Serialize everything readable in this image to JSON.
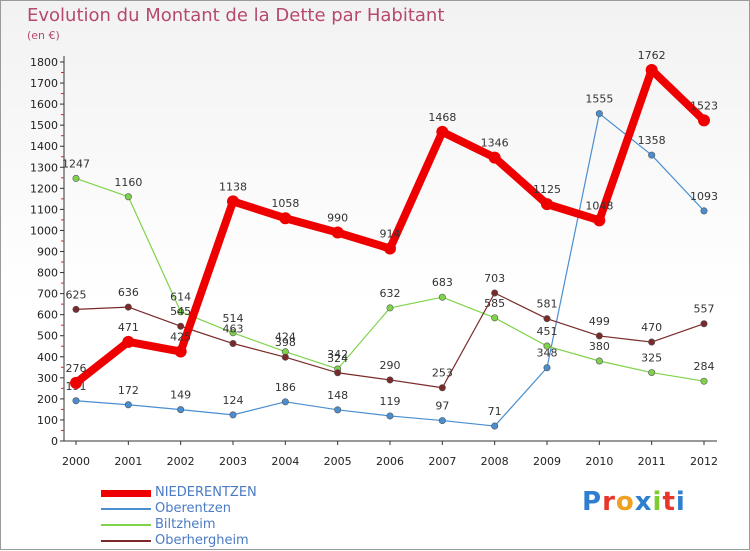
{
  "header": {
    "title": "Evolution du Montant de la Dette par Habitant",
    "subtitle": "(en €)"
  },
  "brand": {
    "logo_text": "Proxiti"
  },
  "chart_data": {
    "type": "line",
    "title": "Evolution du Montant de la Dette par Habitant",
    "subtitle": "(en €)",
    "x": [
      2000,
      2001,
      2002,
      2003,
      2004,
      2005,
      2006,
      2007,
      2008,
      2009,
      2010,
      2011,
      2012
    ],
    "y_ticks": [
      0,
      100,
      200,
      300,
      400,
      500,
      600,
      700,
      800,
      900,
      1000,
      1100,
      1200,
      1300,
      1400,
      1500,
      1600,
      1700,
      1800
    ],
    "ylim": [
      0,
      1800
    ],
    "grid": false,
    "legend_position": "bottom-left",
    "series": [
      {
        "name": "NIEDERENTZEN",
        "color": "#ee0000",
        "values": [
          276,
          471,
          425,
          1138,
          1058,
          990,
          914,
          1468,
          1346,
          1125,
          1048,
          1762,
          1523
        ]
      },
      {
        "name": "Oberentzen",
        "color": "#4a8ed0",
        "values": [
          191,
          172,
          149,
          124,
          186,
          148,
          119,
          97,
          71,
          348,
          1555,
          1358,
          1093
        ]
      },
      {
        "name": "Biltzheim",
        "color": "#7fd34a",
        "values": [
          1247,
          1160,
          614,
          514,
          424,
          342,
          632,
          683,
          585,
          451,
          380,
          325,
          284
        ]
      },
      {
        "name": "Oberhergheim",
        "color": "#7a2a2a",
        "values": [
          625,
          636,
          545,
          463,
          398,
          324,
          290,
          253,
          703,
          581,
          499,
          470,
          557
        ]
      }
    ]
  }
}
